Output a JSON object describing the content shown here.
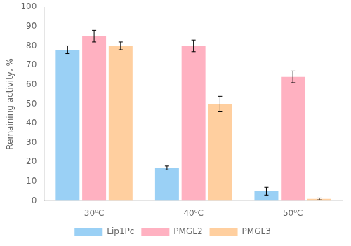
{
  "chart_data": {
    "type": "bar",
    "categories": [
      "30⁰C",
      "40⁰C",
      "50⁰C"
    ],
    "series": [
      {
        "name": "Lip1Pc",
        "values": [
          78,
          17,
          5
        ],
        "errors": [
          2,
          1,
          2
        ]
      },
      {
        "name": "PMGL2",
        "values": [
          85,
          80,
          64
        ],
        "errors": [
          3,
          3,
          3
        ]
      },
      {
        "name": "PMGL3",
        "values": [
          80,
          50,
          1
        ],
        "errors": [
          2,
          4,
          0.5
        ]
      }
    ],
    "ylabel": "Remaining activity, %",
    "ylim": [
      0,
      100
    ],
    "yticks": [
      0,
      10,
      20,
      30,
      40,
      50,
      60,
      70,
      80,
      90,
      100
    ],
    "grid": false,
    "legend": "bottom"
  }
}
